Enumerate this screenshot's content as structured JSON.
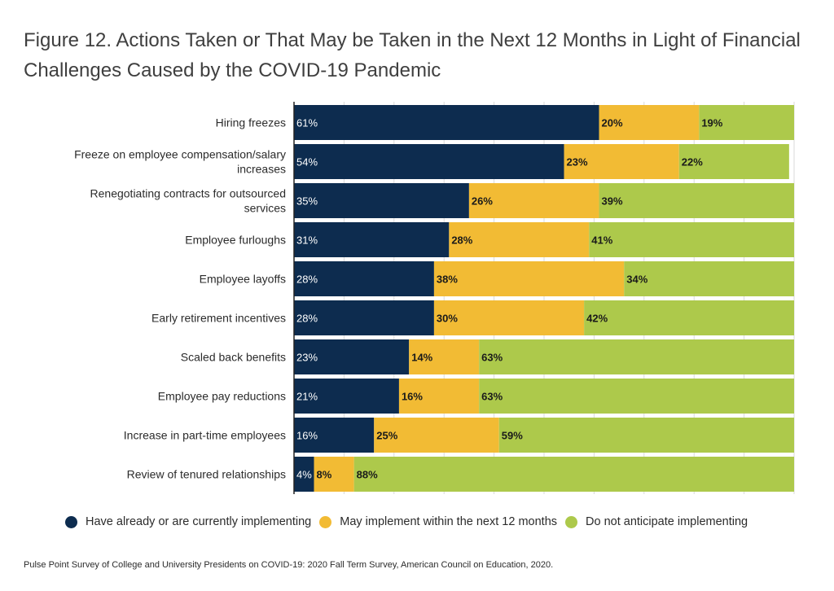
{
  "chart_data": {
    "type": "bar",
    "orientation": "horizontal",
    "stacked": true,
    "title": "Figure 12. Actions Taken or That May be Taken in the Next 12 Months in Light of Financial Challenges Caused by the COVID-19 Pandemic",
    "categories": [
      "Hiring freezes",
      "Freeze on employee compensation/salary increases",
      "Renegotiating contracts for outsourced services",
      "Employee furloughs",
      "Employee layoffs",
      "Early retirement incentives",
      "Scaled back benefits",
      "Employee pay reductions",
      "Increase in part-time employees",
      "Review of tenured relationships"
    ],
    "series": [
      {
        "name": "Have already or are currently implementing",
        "color": "#0d2c4f",
        "values": [
          61,
          54,
          35,
          31,
          28,
          28,
          23,
          21,
          16,
          4
        ]
      },
      {
        "name": "May implement within the next 12 months",
        "color": "#f2bb34",
        "values": [
          20,
          23,
          26,
          28,
          38,
          30,
          14,
          16,
          25,
          8
        ]
      },
      {
        "name": "Do not anticipate implementing",
        "color": "#adc94b",
        "values": [
          19,
          22,
          39,
          41,
          34,
          42,
          63,
          63,
          59,
          88
        ]
      }
    ],
    "value_suffix": "%",
    "xlim": [
      0,
      100
    ],
    "grid": true,
    "legend_position": "bottom"
  },
  "source": "Pulse Point Survey of College and University Presidents on COVID-19: 2020 Fall Term Survey, American Council on Education, 2020."
}
